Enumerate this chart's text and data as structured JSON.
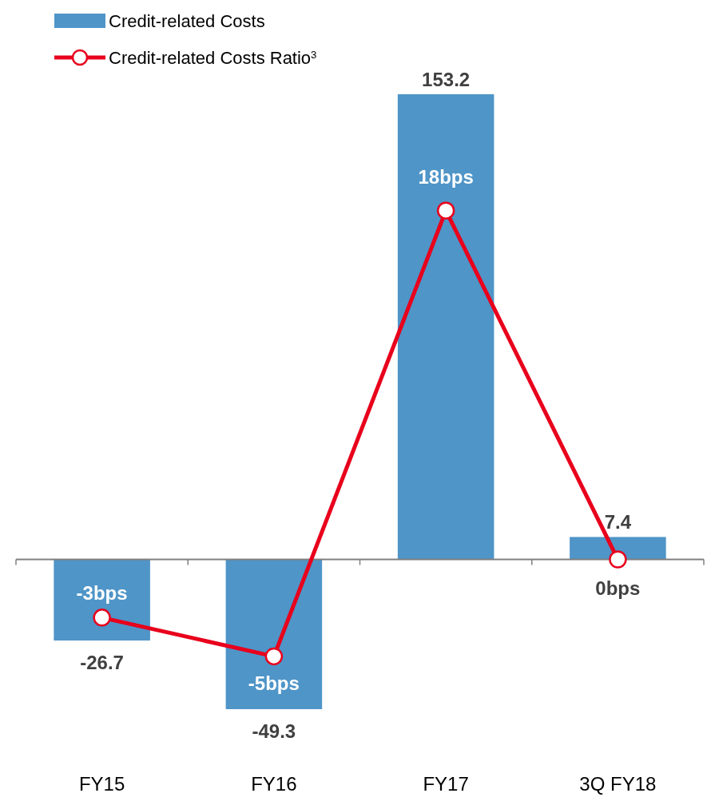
{
  "chart_data": {
    "type": "bar",
    "categories": [
      "FY15",
      "FY16",
      "FY17",
      "3Q FY18"
    ],
    "series": [
      {
        "name": "Credit-related Costs",
        "color": "#4f95c8",
        "values": [
          -26.7,
          -49.3,
          153.2,
          7.4
        ],
        "data_labels": true
      },
      {
        "name": "Credit-related Costs Ratio$^{3}$",
        "type": "line",
        "axis": "y2",
        "color": "#e8001c",
        "values": [
          -3,
          -5,
          18,
          0
        ],
        "value_labels": [
          "-3bps",
          "-5bps",
          "18bps",
          "0bps"
        ],
        "marker": "circle"
      }
    ],
    "tick_labels": "x",
    "legend": "top left"
  }
}
